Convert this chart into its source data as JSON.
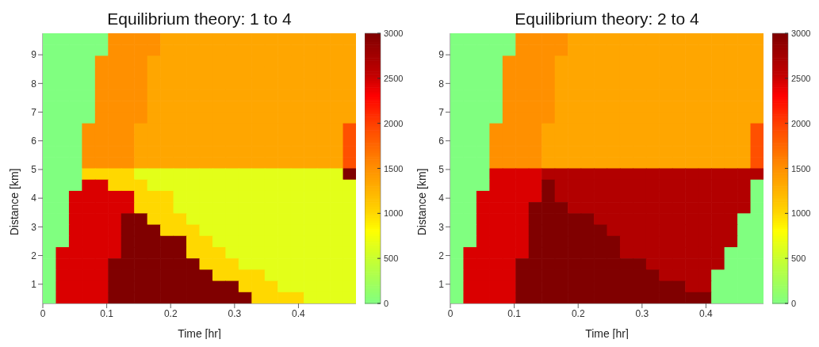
{
  "chart_data": [
    {
      "type": "heatmap",
      "title": "Equilibrium theory: 1 to 4",
      "xlabel": "Time [hr]",
      "ylabel": "Distance [km]",
      "xlim": [
        0,
        0.49
      ],
      "xticks": [
        0,
        0.1,
        0.2,
        0.3,
        0.4
      ],
      "ylim": [
        0.33,
        9.75
      ],
      "yticks": [
        1,
        2,
        3,
        4,
        5,
        6,
        7,
        8,
        9
      ],
      "clim": [
        0,
        3000
      ],
      "cticks": [
        0,
        500,
        1000,
        1500,
        2000,
        2500,
        3000
      ],
      "cells": [
        [
          0,
          0,
          0,
          0,
          0,
          1500,
          1500,
          1500,
          1500,
          1350,
          1350,
          1350,
          1350,
          1350,
          1350,
          1350,
          1350,
          1350,
          1350,
          1350,
          1350,
          1350,
          1350,
          1350
        ],
        [
          0,
          0,
          0,
          0,
          0,
          1500,
          1500,
          1500,
          1500,
          1350,
          1350,
          1350,
          1350,
          1350,
          1350,
          1350,
          1350,
          1350,
          1350,
          1350,
          1350,
          1350,
          1350,
          1350
        ],
        [
          0,
          0,
          0,
          0,
          1500,
          1500,
          1500,
          1500,
          1350,
          1350,
          1350,
          1350,
          1350,
          1350,
          1350,
          1350,
          1350,
          1350,
          1350,
          1350,
          1350,
          1350,
          1350,
          1350
        ],
        [
          0,
          0,
          0,
          0,
          1500,
          1500,
          1500,
          1500,
          1350,
          1350,
          1350,
          1350,
          1350,
          1350,
          1350,
          1350,
          1350,
          1350,
          1350,
          1350,
          1350,
          1350,
          1350,
          1350
        ],
        [
          0,
          0,
          0,
          0,
          1500,
          1500,
          1500,
          1500,
          1350,
          1350,
          1350,
          1350,
          1350,
          1350,
          1350,
          1350,
          1350,
          1350,
          1350,
          1350,
          1350,
          1350,
          1350,
          1350
        ],
        [
          0,
          0,
          0,
          0,
          1500,
          1500,
          1500,
          1500,
          1350,
          1350,
          1350,
          1350,
          1350,
          1350,
          1350,
          1350,
          1350,
          1350,
          1350,
          1350,
          1350,
          1350,
          1350,
          1350
        ],
        [
          0,
          0,
          0,
          0,
          1500,
          1500,
          1500,
          1500,
          1350,
          1350,
          1350,
          1350,
          1350,
          1350,
          1350,
          1350,
          1350,
          1350,
          1350,
          1350,
          1350,
          1350,
          1350,
          1350
        ],
        [
          0,
          0,
          0,
          0,
          1500,
          1500,
          1500,
          1500,
          1350,
          1350,
          1350,
          1350,
          1350,
          1350,
          1350,
          1350,
          1350,
          1350,
          1350,
          1350,
          1350,
          1350,
          1350,
          1350
        ],
        [
          0,
          0,
          0,
          1500,
          1500,
          1500,
          1500,
          1350,
          1350,
          1350,
          1350,
          1350,
          1350,
          1350,
          1350,
          1350,
          1350,
          1350,
          1350,
          1350,
          1350,
          1350,
          1350,
          1900
        ],
        [
          0,
          0,
          0,
          1500,
          1500,
          1500,
          1500,
          1350,
          1350,
          1350,
          1350,
          1350,
          1350,
          1350,
          1350,
          1350,
          1350,
          1350,
          1350,
          1350,
          1350,
          1350,
          1350,
          1900
        ],
        [
          0,
          0,
          0,
          1500,
          1500,
          1500,
          1500,
          1350,
          1350,
          1350,
          1350,
          1350,
          1350,
          1350,
          1350,
          1350,
          1350,
          1350,
          1350,
          1350,
          1350,
          1350,
          1350,
          1900
        ],
        [
          0,
          0,
          0,
          1500,
          1500,
          1500,
          1500,
          1350,
          1350,
          1350,
          1350,
          1350,
          1350,
          1350,
          1350,
          1350,
          1350,
          1350,
          1350,
          1350,
          1350,
          1350,
          1350,
          1900
        ],
        [
          0,
          0,
          0,
          1000,
          1000,
          1000,
          1000,
          650,
          650,
          650,
          650,
          650,
          650,
          650,
          650,
          650,
          650,
          650,
          650,
          650,
          650,
          650,
          650,
          3000
        ],
        [
          0,
          0,
          0,
          2450,
          2450,
          1000,
          1000,
          1000,
          650,
          650,
          650,
          650,
          650,
          650,
          650,
          650,
          650,
          650,
          650,
          650,
          650,
          650,
          650,
          650
        ],
        [
          0,
          0,
          2450,
          2450,
          2450,
          2450,
          2450,
          1000,
          1000,
          1000,
          650,
          650,
          650,
          650,
          650,
          650,
          650,
          650,
          650,
          650,
          650,
          650,
          650,
          650
        ],
        [
          0,
          0,
          2450,
          2450,
          2450,
          2450,
          2450,
          1000,
          1000,
          1000,
          650,
          650,
          650,
          650,
          650,
          650,
          650,
          650,
          650,
          650,
          650,
          650,
          650,
          650
        ],
        [
          0,
          0,
          2450,
          2450,
          2450,
          2450,
          3000,
          3000,
          1000,
          1000,
          1000,
          650,
          650,
          650,
          650,
          650,
          650,
          650,
          650,
          650,
          650,
          650,
          650,
          650
        ],
        [
          0,
          0,
          2450,
          2450,
          2450,
          2450,
          3000,
          3000,
          3000,
          1000,
          1000,
          1000,
          650,
          650,
          650,
          650,
          650,
          650,
          650,
          650,
          650,
          650,
          650,
          650
        ],
        [
          0,
          0,
          2450,
          2450,
          2450,
          2450,
          3000,
          3000,
          3000,
          3000,
          3000,
          1000,
          1000,
          650,
          650,
          650,
          650,
          650,
          650,
          650,
          650,
          650,
          650,
          650
        ],
        [
          0,
          2450,
          2450,
          2450,
          2450,
          2450,
          3000,
          3000,
          3000,
          3000,
          3000,
          1000,
          1000,
          1000,
          650,
          650,
          650,
          650,
          650,
          650,
          650,
          650,
          650,
          650
        ],
        [
          0,
          2450,
          2450,
          2450,
          2450,
          3000,
          3000,
          3000,
          3000,
          3000,
          3000,
          3000,
          1000,
          1000,
          1000,
          650,
          650,
          650,
          650,
          650,
          650,
          650,
          650,
          650
        ],
        [
          0,
          2450,
          2450,
          2450,
          2450,
          3000,
          3000,
          3000,
          3000,
          3000,
          3000,
          3000,
          3000,
          1000,
          1000,
          1000,
          1000,
          650,
          650,
          650,
          650,
          650,
          650,
          650
        ],
        [
          0,
          2450,
          2450,
          2450,
          2450,
          3000,
          3000,
          3000,
          3000,
          3000,
          3000,
          3000,
          3000,
          3000,
          3000,
          1000,
          1000,
          1000,
          650,
          650,
          650,
          650,
          650,
          650
        ],
        [
          0,
          2450,
          2450,
          2450,
          2450,
          3000,
          3000,
          3000,
          3000,
          3000,
          3000,
          3000,
          3000,
          3000,
          3000,
          3000,
          1000,
          1000,
          1000,
          1000,
          650,
          650,
          650,
          650
        ]
      ]
    },
    {
      "type": "heatmap",
      "title": "Equilibrium theory: 2 to 4",
      "xlabel": "Time [hr]",
      "ylabel": "Distance [km]",
      "xlim": [
        0,
        0.49
      ],
      "xticks": [
        0,
        0.1,
        0.2,
        0.3,
        0.4
      ],
      "ylim": [
        0.33,
        9.75
      ],
      "yticks": [
        1,
        2,
        3,
        4,
        5,
        6,
        7,
        8,
        9
      ],
      "clim": [
        0,
        3000
      ],
      "cticks": [
        0,
        500,
        1000,
        1500,
        2000,
        2500,
        3000
      ],
      "cells": [
        [
          0,
          0,
          0,
          0,
          0,
          1500,
          1500,
          1500,
          1500,
          1350,
          1350,
          1350,
          1350,
          1350,
          1350,
          1350,
          1350,
          1350,
          1350,
          1350,
          1350,
          1350,
          1350,
          1350
        ],
        [
          0,
          0,
          0,
          0,
          0,
          1500,
          1500,
          1500,
          1500,
          1350,
          1350,
          1350,
          1350,
          1350,
          1350,
          1350,
          1350,
          1350,
          1350,
          1350,
          1350,
          1350,
          1350,
          1350
        ],
        [
          0,
          0,
          0,
          0,
          1500,
          1500,
          1500,
          1500,
          1350,
          1350,
          1350,
          1350,
          1350,
          1350,
          1350,
          1350,
          1350,
          1350,
          1350,
          1350,
          1350,
          1350,
          1350,
          1350
        ],
        [
          0,
          0,
          0,
          0,
          1500,
          1500,
          1500,
          1500,
          1350,
          1350,
          1350,
          1350,
          1350,
          1350,
          1350,
          1350,
          1350,
          1350,
          1350,
          1350,
          1350,
          1350,
          1350,
          1350
        ],
        [
          0,
          0,
          0,
          0,
          1500,
          1500,
          1500,
          1500,
          1350,
          1350,
          1350,
          1350,
          1350,
          1350,
          1350,
          1350,
          1350,
          1350,
          1350,
          1350,
          1350,
          1350,
          1350,
          1350
        ],
        [
          0,
          0,
          0,
          0,
          1500,
          1500,
          1500,
          1500,
          1350,
          1350,
          1350,
          1350,
          1350,
          1350,
          1350,
          1350,
          1350,
          1350,
          1350,
          1350,
          1350,
          1350,
          1350,
          1350
        ],
        [
          0,
          0,
          0,
          0,
          1500,
          1500,
          1500,
          1500,
          1350,
          1350,
          1350,
          1350,
          1350,
          1350,
          1350,
          1350,
          1350,
          1350,
          1350,
          1350,
          1350,
          1350,
          1350,
          1350
        ],
        [
          0,
          0,
          0,
          0,
          1500,
          1500,
          1500,
          1500,
          1350,
          1350,
          1350,
          1350,
          1350,
          1350,
          1350,
          1350,
          1350,
          1350,
          1350,
          1350,
          1350,
          1350,
          1350,
          1350
        ],
        [
          0,
          0,
          0,
          1500,
          1500,
          1500,
          1500,
          1350,
          1350,
          1350,
          1350,
          1350,
          1350,
          1350,
          1350,
          1350,
          1350,
          1350,
          1350,
          1350,
          1350,
          1350,
          1350,
          1900
        ],
        [
          0,
          0,
          0,
          1500,
          1500,
          1500,
          1500,
          1350,
          1350,
          1350,
          1350,
          1350,
          1350,
          1350,
          1350,
          1350,
          1350,
          1350,
          1350,
          1350,
          1350,
          1350,
          1350,
          1900
        ],
        [
          0,
          0,
          0,
          1500,
          1500,
          1500,
          1500,
          1350,
          1350,
          1350,
          1350,
          1350,
          1350,
          1350,
          1350,
          1350,
          1350,
          1350,
          1350,
          1350,
          1350,
          1350,
          1350,
          1900
        ],
        [
          0,
          0,
          0,
          1500,
          1500,
          1500,
          1500,
          1350,
          1350,
          1350,
          1350,
          1350,
          1350,
          1350,
          1350,
          1350,
          1350,
          1350,
          1350,
          1350,
          1350,
          1350,
          1350,
          1900
        ],
        [
          0,
          0,
          0,
          2450,
          2450,
          2450,
          2450,
          2650,
          2650,
          2650,
          2650,
          2650,
          2650,
          2650,
          2650,
          2650,
          2650,
          2650,
          2650,
          2650,
          2650,
          2650,
          2650,
          2650
        ],
        [
          0,
          0,
          0,
          2450,
          2450,
          2450,
          2450,
          3000,
          2650,
          2650,
          2650,
          2650,
          2650,
          2650,
          2650,
          2650,
          2650,
          2650,
          2650,
          2650,
          2650,
          2650,
          2650,
          0
        ],
        [
          0,
          0,
          2450,
          2450,
          2450,
          2450,
          2450,
          3000,
          2650,
          2650,
          2650,
          2650,
          2650,
          2650,
          2650,
          2650,
          2650,
          2650,
          2650,
          2650,
          2650,
          2650,
          2650,
          0
        ],
        [
          0,
          0,
          2450,
          2450,
          2450,
          2450,
          3000,
          3000,
          3000,
          2650,
          2650,
          2650,
          2650,
          2650,
          2650,
          2650,
          2650,
          2650,
          2650,
          2650,
          2650,
          2650,
          2650,
          0
        ],
        [
          0,
          0,
          2450,
          2450,
          2450,
          2450,
          3000,
          3000,
          3000,
          3000,
          3000,
          2650,
          2650,
          2650,
          2650,
          2650,
          2650,
          2650,
          2650,
          2650,
          2650,
          2650,
          0,
          0
        ],
        [
          0,
          0,
          2450,
          2450,
          2450,
          2450,
          3000,
          3000,
          3000,
          3000,
          3000,
          3000,
          2650,
          2650,
          2650,
          2650,
          2650,
          2650,
          2650,
          2650,
          2650,
          2650,
          0,
          0
        ],
        [
          0,
          0,
          2450,
          2450,
          2450,
          2450,
          3000,
          3000,
          3000,
          3000,
          3000,
          3000,
          3000,
          2650,
          2650,
          2650,
          2650,
          2650,
          2650,
          2650,
          2650,
          2650,
          0,
          0
        ],
        [
          0,
          2450,
          2450,
          2450,
          2450,
          2450,
          3000,
          3000,
          3000,
          3000,
          3000,
          3000,
          3000,
          2650,
          2650,
          2650,
          2650,
          2650,
          2650,
          2650,
          2650,
          0,
          0,
          0
        ],
        [
          0,
          2450,
          2450,
          2450,
          2450,
          3000,
          3000,
          3000,
          3000,
          3000,
          3000,
          3000,
          3000,
          3000,
          3000,
          2650,
          2650,
          2650,
          2650,
          2650,
          2650,
          0,
          0,
          0
        ],
        [
          0,
          2450,
          2450,
          2450,
          2450,
          3000,
          3000,
          3000,
          3000,
          3000,
          3000,
          3000,
          3000,
          3000,
          3000,
          3000,
          2650,
          2650,
          2650,
          2650,
          0,
          0,
          0,
          0
        ],
        [
          0,
          2450,
          2450,
          2450,
          2450,
          3000,
          3000,
          3000,
          3000,
          3000,
          3000,
          3000,
          3000,
          3000,
          3000,
          3000,
          3000,
          3000,
          2650,
          2650,
          0,
          0,
          0,
          0
        ],
        [
          0,
          2450,
          2450,
          2450,
          2450,
          3000,
          3000,
          3000,
          3000,
          3000,
          3000,
          3000,
          3000,
          3000,
          3000,
          3000,
          3000,
          3000,
          3000,
          3000,
          0,
          0,
          0,
          0
        ]
      ]
    }
  ]
}
